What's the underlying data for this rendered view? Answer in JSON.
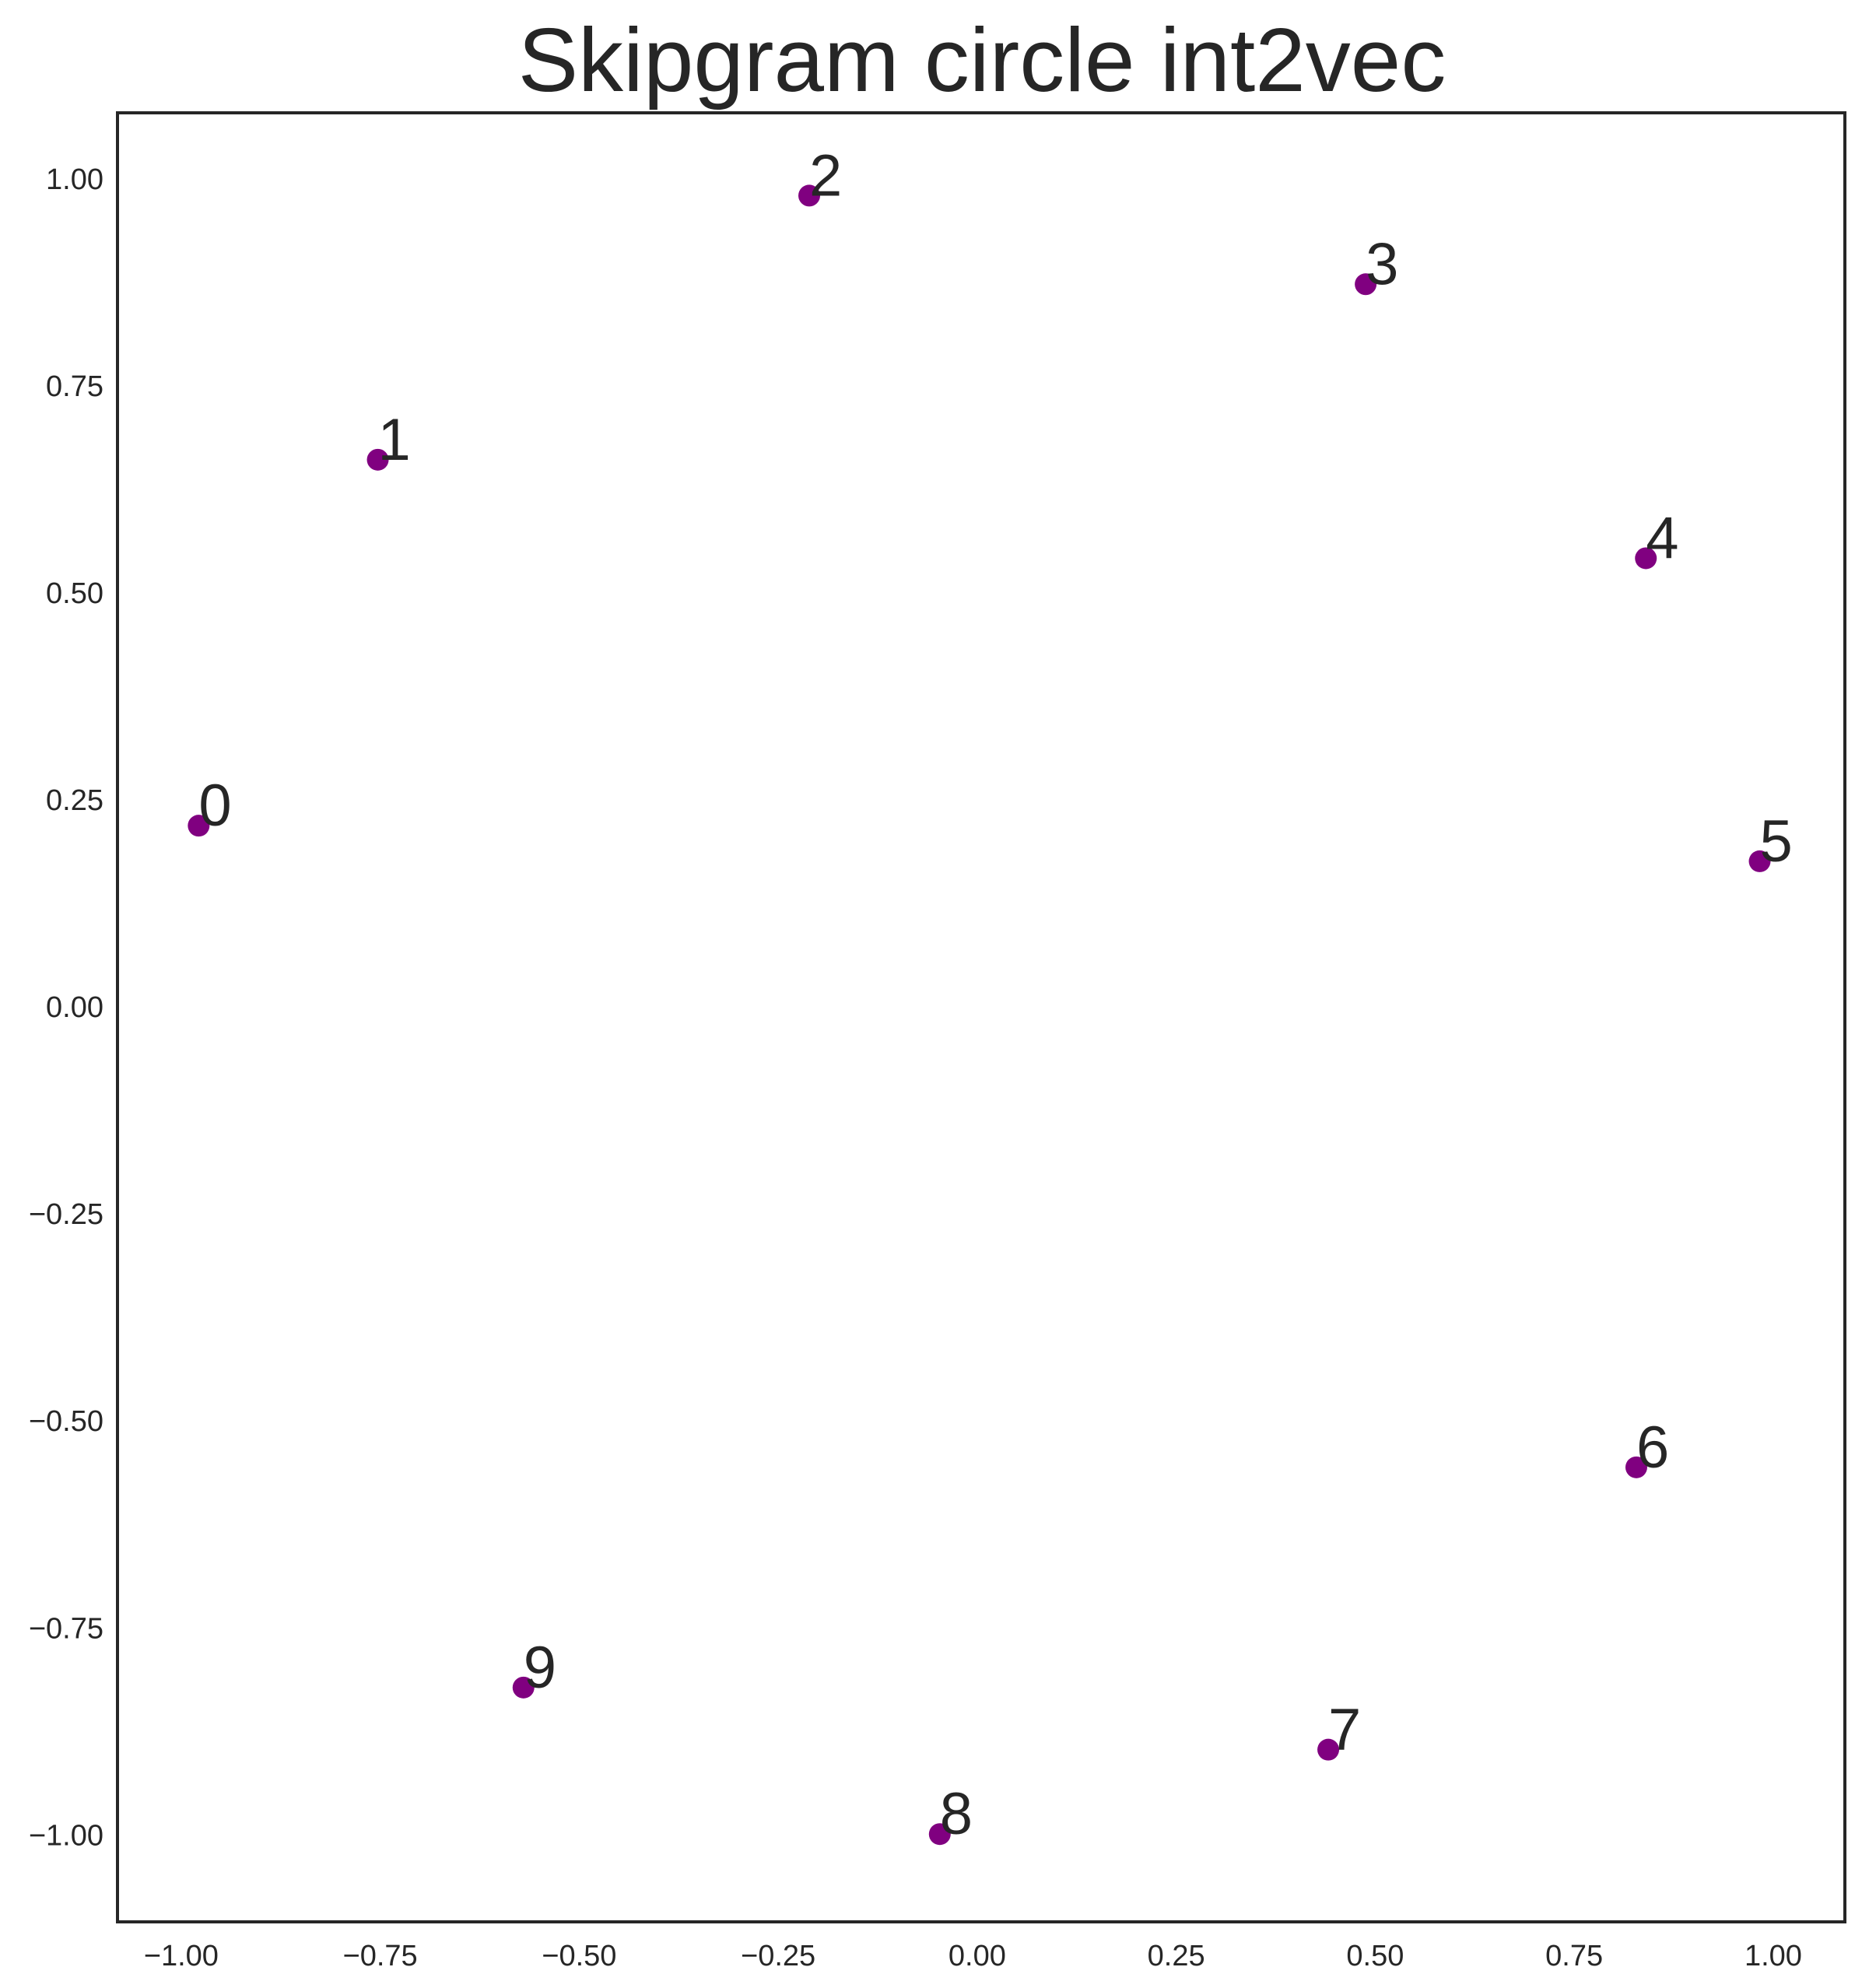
{
  "chart_data": {
    "type": "scatter",
    "title": "Skipgram circle int2vec",
    "xlabel": "",
    "ylabel": "",
    "xlim": [
      -1.08,
      1.09
    ],
    "ylim": [
      -1.105,
      1.08
    ],
    "grid": false,
    "marker_color": "#800080",
    "text_color": "#262626",
    "x_ticks": [
      -1.0,
      -0.75,
      -0.5,
      -0.25,
      0.0,
      0.25,
      0.5,
      0.75,
      1.0
    ],
    "x_tick_labels": [
      "−1.00",
      "−0.75",
      "−0.50",
      "−0.25",
      "0.00",
      "0.25",
      "0.50",
      "0.75",
      "1.00"
    ],
    "y_ticks": [
      1.0,
      0.75,
      0.5,
      0.25,
      0.0,
      -0.25,
      -0.5,
      -0.75,
      -1.0
    ],
    "y_tick_labels": [
      "1.00",
      "0.75",
      "0.50",
      "0.25",
      "0.00",
      "−0.25",
      "−0.50",
      "−0.75",
      "−1.00"
    ],
    "points": [
      {
        "label": "0",
        "x": -0.978,
        "y": 0.219
      },
      {
        "label": "1",
        "x": -0.753,
        "y": 0.661
      },
      {
        "label": "2",
        "x": -0.211,
        "y": 0.98
      },
      {
        "label": "3",
        "x": 0.488,
        "y": 0.873
      },
      {
        "label": "4",
        "x": 0.84,
        "y": 0.542
      },
      {
        "label": "5",
        "x": 0.983,
        "y": 0.176
      },
      {
        "label": "6",
        "x": 0.828,
        "y": -0.556
      },
      {
        "label": "7",
        "x": 0.441,
        "y": -0.897
      },
      {
        "label": "8",
        "x": -0.047,
        "y": -0.999
      },
      {
        "label": "9",
        "x": -0.57,
        "y": -0.822
      }
    ]
  }
}
